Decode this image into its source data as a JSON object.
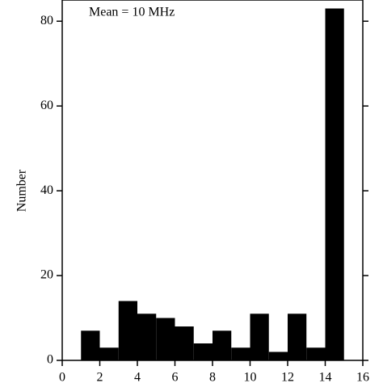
{
  "chart_data": {
    "type": "histogram",
    "annotation": "Mean = 10 MHz",
    "ylabel": "Number",
    "bins": [
      1,
      2,
      3,
      4,
      5,
      6,
      7,
      8,
      9,
      10,
      11,
      12,
      13,
      14,
      15
    ],
    "counts": [
      7,
      3,
      14,
      11,
      10,
      8,
      4,
      7,
      3,
      11,
      2,
      11,
      3,
      83
    ],
    "color": "#000000",
    "xlim": [
      0,
      16
    ],
    "xticks": [
      0,
      2,
      4,
      6,
      8,
      10,
      12,
      14,
      16
    ],
    "ylim": [
      0,
      85
    ],
    "yticks": [
      0,
      20,
      40,
      60,
      80
    ]
  }
}
